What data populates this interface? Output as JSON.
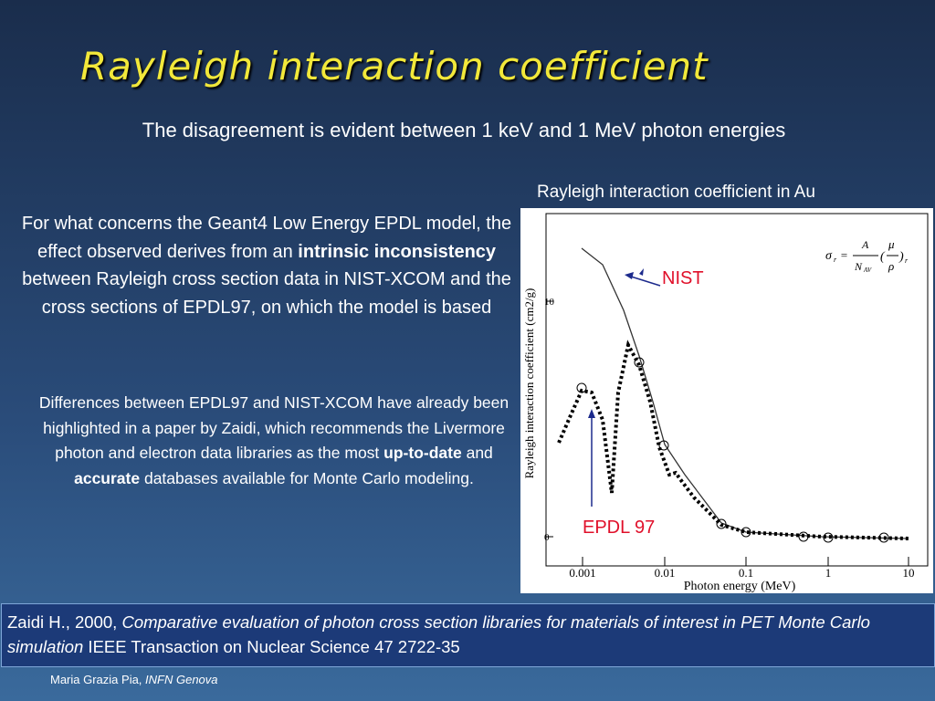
{
  "title": "Rayleigh interaction coefficient",
  "subtitle": "The disagreement is evident between 1 keV and 1 MeV photon energies",
  "paragraph1": [
    "For what concerns the Geant4 Low Energy EPDL model, the effect observed derives from an ",
    "intrinsic inconsistency",
    " between Rayleigh cross section data in NIST-XCOM and the cross sections of EPDL97, on which the model is based"
  ],
  "paragraph2": [
    "Differences between EPDL97 and NIST-XCOM have already been highlighted in a paper by Zaidi, which recommends the Livermore photon and electron data libraries as the most ",
    "up-to-date",
    " and ",
    "accurate",
    " databases available for Monte Carlo modeling."
  ],
  "figure": {
    "caption": "Rayleigh interaction coefficient in Au",
    "y_label": "Rayleigh interaction coefficient (cm2/g)",
    "x_label": "Photon energy (MeV)",
    "x_ticks": [
      "0.001",
      "0.01",
      "0.1",
      "1",
      "10"
    ],
    "y_ticks": [
      "10",
      "0"
    ],
    "nist_label": "NIST",
    "epdl_label": "EPDL 97",
    "formula": {
      "sigma": "σ",
      "sub": "r",
      "eq": "=",
      "num": "A",
      "den": "N",
      "den_sub": "AV",
      "mu": "μ",
      "rho": "ρ",
      "open": "(",
      "close": ")",
      "close_sub": "r"
    }
  },
  "reference": [
    "Zaidi H., 2000, ",
    "Comparative evaluation of photon cross section libraries for materials of interest in PET Monte Carlo simulation",
    " IEEE Transaction on Nuclear Science 47 2722-35"
  ],
  "footer": [
    "Maria Grazia Pia, ",
    "INFN Genova"
  ]
}
